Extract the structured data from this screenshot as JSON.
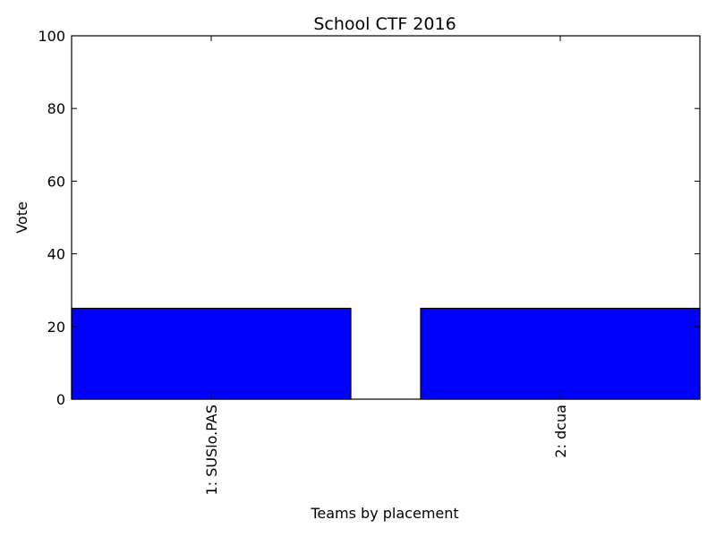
{
  "chart_data": {
    "type": "bar",
    "title": "School CTF 2016",
    "xlabel": "Teams by placement",
    "ylabel": "Vote",
    "categories": [
      "1: SUSlo.PAS",
      "2: dcua"
    ],
    "values": [
      25,
      25
    ],
    "ylim": [
      0,
      100
    ],
    "yticks": [
      0,
      20,
      40,
      60,
      80,
      100
    ],
    "bar_color": "#0000ff",
    "grid": false,
    "legend": "none"
  }
}
